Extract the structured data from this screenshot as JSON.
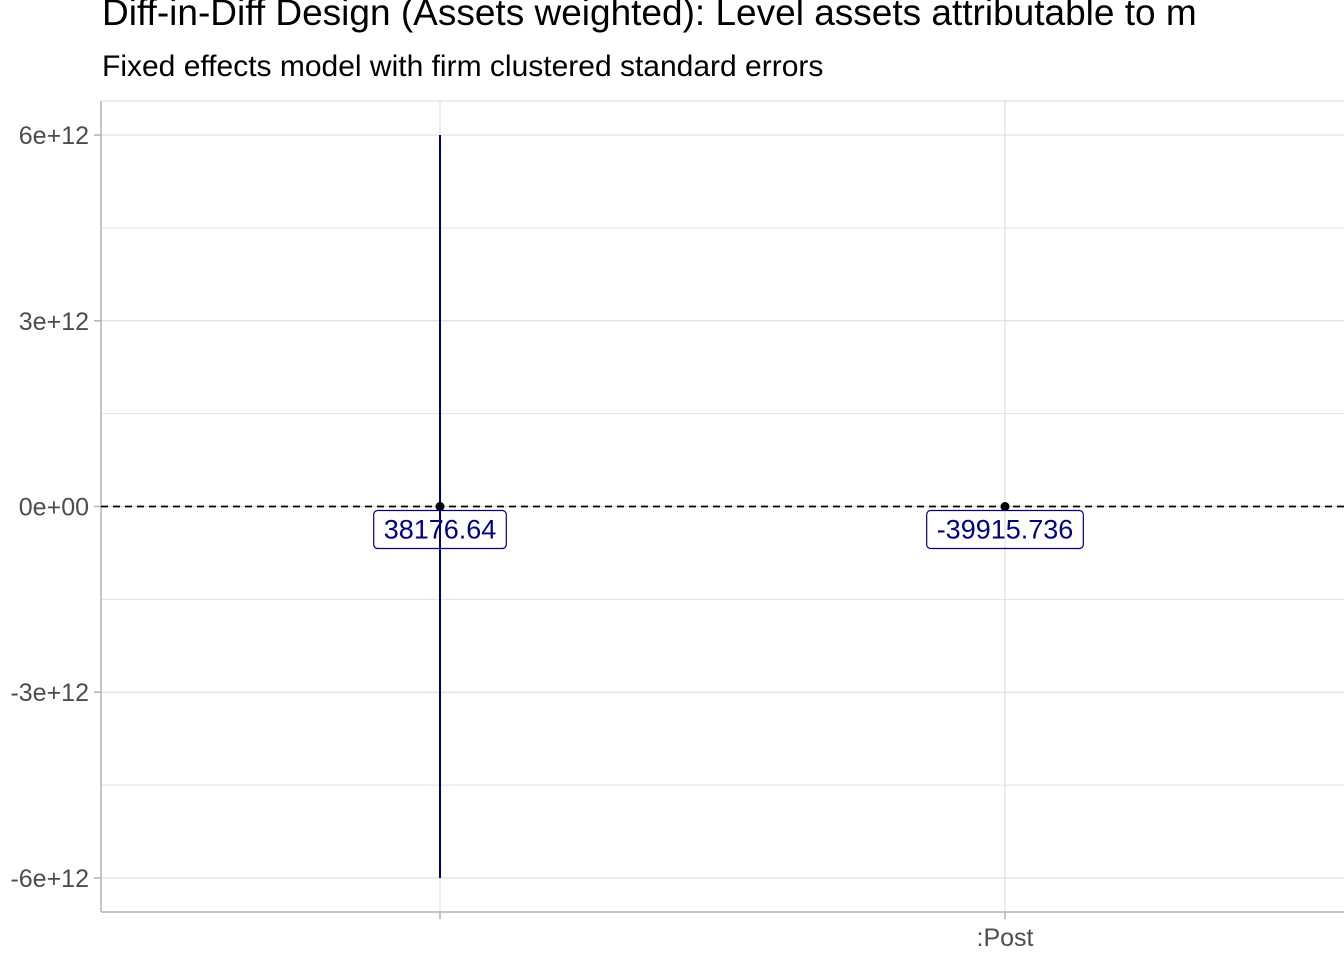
{
  "chart_data": {
    "type": "scatter",
    "title": "Diff-in-Diff Design (Assets weighted): Level assets attributable to m",
    "subtitle": "Fixed effects model with firm clustered standard errors",
    "xlabel": "",
    "ylabel": "",
    "categories": [
      "",
      ":Post"
    ],
    "points": [
      {
        "category": "",
        "estimate": 38176.64,
        "label": "38176.64",
        "ci_low": -6000000000000.0,
        "ci_high": 6000000000000.0
      },
      {
        "category": ":Post",
        "estimate": -39915.736,
        "label": "-39915.736",
        "ci_low": -39915.736,
        "ci_high": -39915.736
      }
    ],
    "ylim": [
      -6550000000000.0,
      6550000000000.0
    ],
    "yticks": [
      6000000000000.0,
      3000000000000.0,
      0,
      -3000000000000.0,
      -6000000000000.0
    ],
    "ytick_labels": [
      "6e+12",
      "3e+12",
      "0e+00",
      "-3e+12",
      "-6e+12"
    ],
    "reference_line": {
      "y": 0,
      "style": "dashed"
    },
    "grid": true,
    "colors": {
      "series": "#000080",
      "point": "#000000",
      "grid": "#e0e0e0",
      "axis": "#b3b3b3"
    }
  }
}
